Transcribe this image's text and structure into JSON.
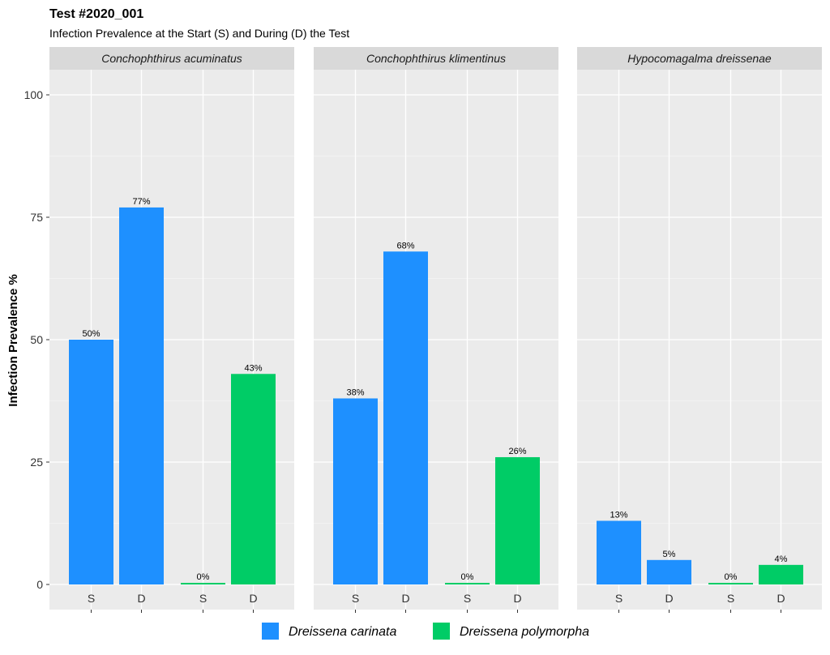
{
  "chart_data": {
    "type": "bar",
    "title": "Test #2020_001",
    "subtitle": "Infection Prevalence at the Start (S) and During (D) the Test",
    "ylabel": "Infection Prevalence %",
    "xlabel": "",
    "ylim": [
      0,
      105
    ],
    "yticks": [
      0,
      25,
      50,
      75,
      100
    ],
    "grid": true,
    "legend_position": "bottom",
    "series": [
      {
        "name": "Dreissena carinata",
        "color": "#1E90FF"
      },
      {
        "name": "Dreissena polymorpha",
        "color": "#00CC66"
      }
    ],
    "facets": [
      {
        "name": "Conchophthirus acuminatus",
        "bars": [
          {
            "label": "S",
            "series": "Dreissena carinata",
            "value": 50,
            "text": "50%"
          },
          {
            "label": "D",
            "series": "Dreissena carinata",
            "value": 77,
            "text": "77%"
          },
          {
            "label": "S",
            "series": "Dreissena polymorpha",
            "value": 0,
            "text": "0%"
          },
          {
            "label": "D",
            "series": "Dreissena polymorpha",
            "value": 43,
            "text": "43%"
          }
        ]
      },
      {
        "name": "Conchophthirus klimentinus",
        "bars": [
          {
            "label": "S",
            "series": "Dreissena carinata",
            "value": 38,
            "text": "38%"
          },
          {
            "label": "D",
            "series": "Dreissena carinata",
            "value": 68,
            "text": "68%"
          },
          {
            "label": "S",
            "series": "Dreissena polymorpha",
            "value": 0,
            "text": "0%"
          },
          {
            "label": "D",
            "series": "Dreissena polymorpha",
            "value": 26,
            "text": "26%"
          }
        ]
      },
      {
        "name": "Hypocomagalma dreissenae",
        "bars": [
          {
            "label": "S",
            "series": "Dreissena carinata",
            "value": 13,
            "text": "13%"
          },
          {
            "label": "D",
            "series": "Dreissena carinata",
            "value": 5,
            "text": "5%"
          },
          {
            "label": "S",
            "series": "Dreissena polymorpha",
            "value": 0,
            "text": "0%"
          },
          {
            "label": "D",
            "series": "Dreissena polymorpha",
            "value": 4,
            "text": "4%"
          }
        ]
      }
    ]
  }
}
